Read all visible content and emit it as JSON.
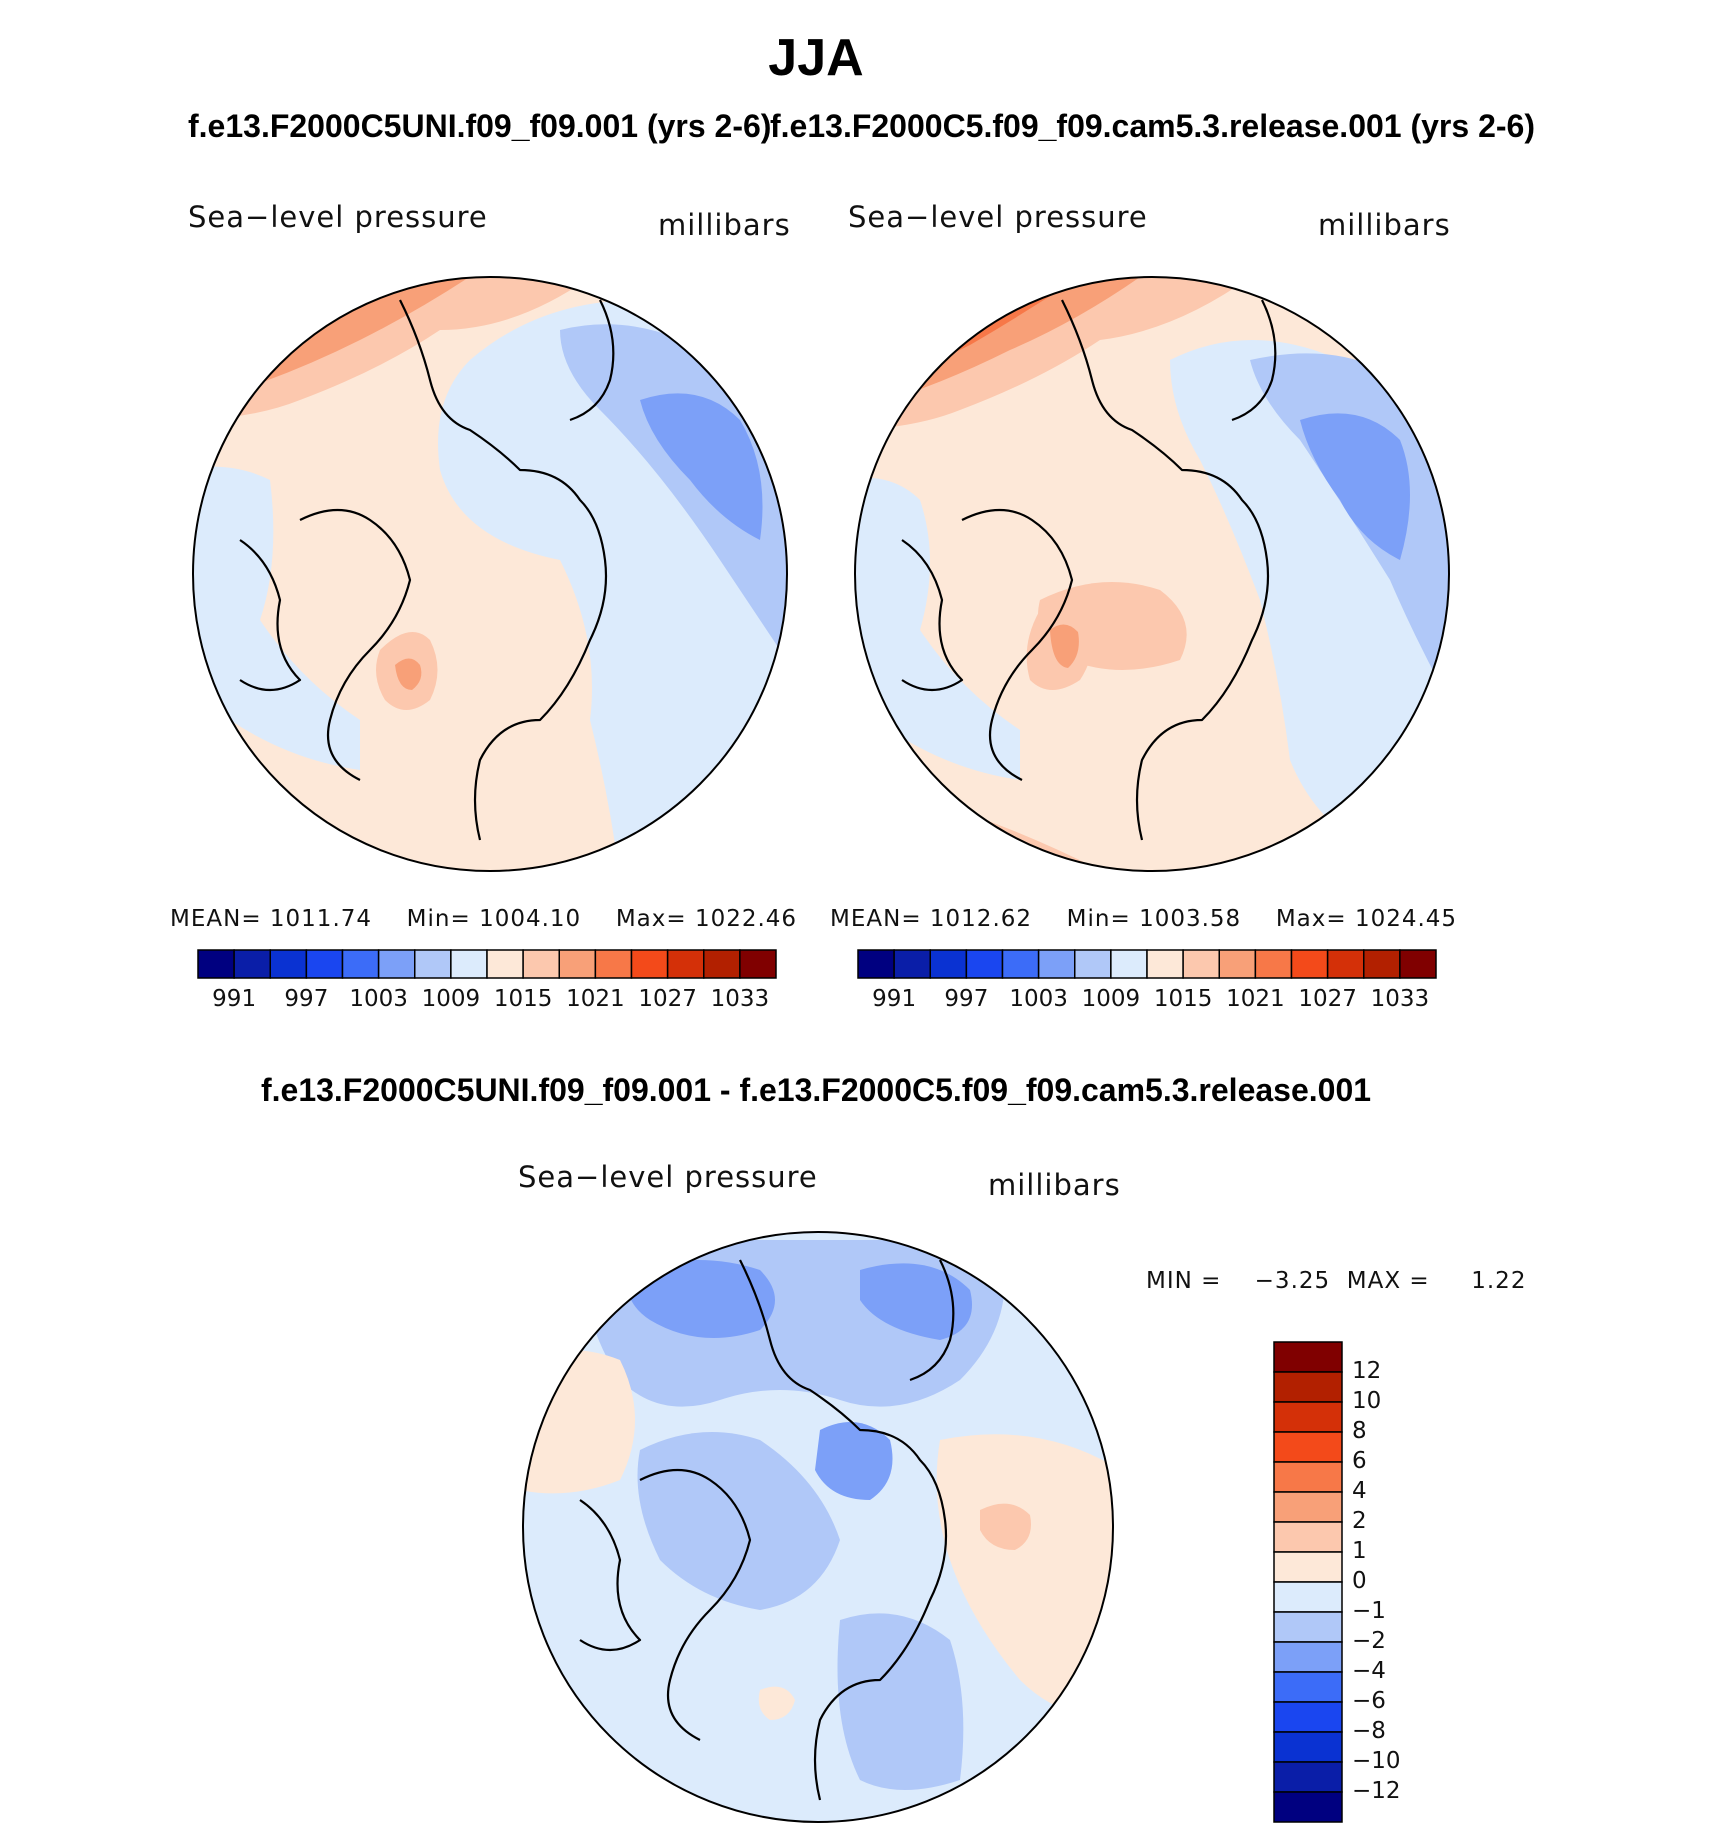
{
  "season": "JJA",
  "panels": [
    {
      "case": "f.e13.F2000C5UNI.f09_f09.001 (yrs 2-6)",
      "variable": "Sea−level pressure",
      "units": "millibars",
      "mean_label": "MEAN=",
      "mean": "1011.74",
      "min_label": "Min=",
      "min": "1004.10",
      "max_label": "Max=",
      "max": "1022.46"
    },
    {
      "case": "f.e13.F2000C5.f09_f09.cam5.3.release.001 (yrs 2-6)",
      "variable": "Sea−level pressure",
      "units": "millibars",
      "mean_label": "MEAN=",
      "mean": "1012.62",
      "min_label": "Min=",
      "min": "1003.58",
      "max_label": "Max=",
      "max": "1024.45"
    }
  ],
  "difference": {
    "title": "f.e13.F2000C5UNI.f09_f09.001 - f.e13.F2000C5.f09_f09.cam5.3.release.001",
    "variable": "Sea−level pressure",
    "units": "millibars",
    "minmax": "MIN =    −3.25  MAX =     1.22"
  },
  "colors": {
    "abs_scale": [
      "#000080",
      "#0a1ea8",
      "#0a32d2",
      "#1a46f0",
      "#3c6cf8",
      "#7ca0f8",
      "#b0c8f8",
      "#dcebfc",
      "#fde8d8",
      "#fcc8ae",
      "#f8a078",
      "#f77848",
      "#f34a1a",
      "#d43008",
      "#b22000",
      "#800000"
    ],
    "diff_scale_top_to_bottom": [
      "#800000",
      "#b22000",
      "#d43008",
      "#f34a1a",
      "#f77848",
      "#f8a078",
      "#fcc8ae",
      "#fde8d8",
      "#dcebfc",
      "#b0c8f8",
      "#7ca0f8",
      "#3c6cf8",
      "#1a46f0",
      "#0a32d2",
      "#0a1ea8",
      "#000080"
    ]
  },
  "chart_data": [
    {
      "type": "heatmap",
      "projection": "north polar stereographic",
      "title": "f.e13.F2000C5UNI.f09_f09.001 (yrs 2-6)",
      "variable": "Sea-level pressure",
      "units": "millibars",
      "mean": 1011.74,
      "min": 1004.1,
      "max": 1022.46,
      "contour_levels": [
        991,
        994,
        997,
        1000,
        1003,
        1006,
        1009,
        1012,
        1015,
        1018,
        1021,
        1024,
        1027,
        1030,
        1033
      ],
      "colorbar_labels": [
        "991",
        "997",
        "1003",
        "1009",
        "1015",
        "1021",
        "1027",
        "1033"
      ]
    },
    {
      "type": "heatmap",
      "projection": "north polar stereographic",
      "title": "f.e13.F2000C5.f09_f09.cam5.3.release.001 (yrs 2-6)",
      "variable": "Sea-level pressure",
      "units": "millibars",
      "mean": 1012.62,
      "min": 1003.58,
      "max": 1024.45,
      "contour_levels": [
        991,
        994,
        997,
        1000,
        1003,
        1006,
        1009,
        1012,
        1015,
        1018,
        1021,
        1024,
        1027,
        1030,
        1033
      ],
      "colorbar_labels": [
        "991",
        "997",
        "1003",
        "1009",
        "1015",
        "1021",
        "1027",
        "1033"
      ]
    },
    {
      "type": "heatmap",
      "projection": "north polar stereographic",
      "title": "f.e13.F2000C5UNI.f09_f09.001 - f.e13.F2000C5.f09_f09.cam5.3.release.001",
      "variable": "Sea-level pressure",
      "units": "millibars",
      "min": -3.25,
      "max": 1.22,
      "contour_levels": [
        -12,
        -10,
        -8,
        -6,
        -4,
        -2,
        -1,
        0,
        1,
        2,
        4,
        6,
        8,
        10,
        12
      ],
      "colorbar_labels": [
        "12",
        "10",
        "8",
        "6",
        "4",
        "2",
        "1",
        "0",
        "−1",
        "−2",
        "−4",
        "−6",
        "−8",
        "−10",
        "−12"
      ]
    }
  ]
}
